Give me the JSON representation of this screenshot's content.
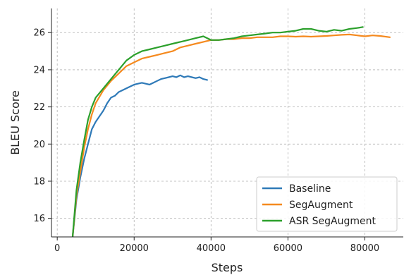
{
  "chart_data": {
    "type": "line",
    "title": "",
    "xlabel": "Steps",
    "ylabel": "BLEU Score",
    "xlim": [
      -1500,
      90000
    ],
    "ylim": [
      15.0,
      27.3
    ],
    "xticks": [
      0,
      20000,
      40000,
      60000,
      80000
    ],
    "yticks": [
      16,
      18,
      20,
      22,
      24,
      26
    ],
    "xtick_labels": [
      "0",
      "20000",
      "40000",
      "60000",
      "80000"
    ],
    "ytick_labels": [
      "16",
      "18",
      "20",
      "22",
      "24",
      "26"
    ],
    "grid": true,
    "legend_position": "lower-right",
    "series": [
      {
        "name": "Baseline",
        "color": "#2f7ab8",
        "x": [
          4000,
          5000,
          6000,
          7000,
          8000,
          9000,
          10000,
          11000,
          12000,
          13000,
          14000,
          15000,
          16000,
          17000,
          18000,
          19000,
          20000,
          21000,
          22000,
          23000,
          24000,
          25000,
          26000,
          27000,
          28000,
          29000,
          30000,
          31000,
          32000,
          33000,
          34000,
          35000,
          36000,
          37000,
          38000,
          39000
        ],
        "y": [
          15.0,
          17.0,
          18.2,
          19.2,
          20.0,
          20.8,
          21.2,
          21.5,
          21.8,
          22.2,
          22.5,
          22.6,
          22.8,
          22.9,
          23.0,
          23.1,
          23.2,
          23.25,
          23.3,
          23.25,
          23.2,
          23.3,
          23.4,
          23.5,
          23.55,
          23.6,
          23.65,
          23.6,
          23.7,
          23.6,
          23.65,
          23.6,
          23.55,
          23.6,
          23.5,
          23.45
        ]
      },
      {
        "name": "SegAugment",
        "color": "#f58a1f",
        "x": [
          4000,
          5000,
          6000,
          7000,
          8000,
          9000,
          10000,
          12000,
          14000,
          16000,
          18000,
          20000,
          22000,
          24000,
          26000,
          28000,
          30000,
          32000,
          34000,
          36000,
          38000,
          40000,
          42000,
          44000,
          46000,
          48000,
          50000,
          52000,
          54000,
          56000,
          58000,
          60000,
          62000,
          64000,
          66000,
          68000,
          70000,
          72000,
          74000,
          76000,
          78000,
          80000,
          82000,
          84000,
          86500
        ],
        "y": [
          15.0,
          17.2,
          18.5,
          19.8,
          20.8,
          21.6,
          22.2,
          22.9,
          23.4,
          23.8,
          24.2,
          24.4,
          24.6,
          24.7,
          24.8,
          24.9,
          25.0,
          25.2,
          25.3,
          25.4,
          25.5,
          25.6,
          25.6,
          25.65,
          25.65,
          25.7,
          25.7,
          25.75,
          25.75,
          25.75,
          25.8,
          25.8,
          25.78,
          25.8,
          25.78,
          25.8,
          25.82,
          25.85,
          25.88,
          25.9,
          25.85,
          25.8,
          25.85,
          25.82,
          25.75
        ]
      },
      {
        "name": "ASR SegAugment",
        "color": "#2ca02c",
        "x": [
          4000,
          5000,
          6000,
          7000,
          8000,
          9000,
          10000,
          12000,
          14000,
          16000,
          18000,
          20000,
          22000,
          24000,
          26000,
          28000,
          30000,
          32000,
          34000,
          36000,
          38000,
          40000,
          42000,
          44000,
          46000,
          48000,
          50000,
          52000,
          54000,
          56000,
          58000,
          60000,
          62000,
          64000,
          66000,
          68000,
          70000,
          72000,
          74000,
          76000,
          78000,
          79500
        ],
        "y": [
          15.0,
          17.5,
          19.0,
          20.2,
          21.3,
          22.0,
          22.5,
          23.0,
          23.5,
          24.0,
          24.5,
          24.8,
          25.0,
          25.1,
          25.2,
          25.3,
          25.4,
          25.5,
          25.6,
          25.7,
          25.8,
          25.6,
          25.6,
          25.65,
          25.7,
          25.8,
          25.85,
          25.9,
          25.95,
          26.0,
          26.0,
          26.05,
          26.1,
          26.2,
          26.2,
          26.1,
          26.05,
          26.15,
          26.1,
          26.2,
          26.25,
          26.3
        ]
      }
    ]
  }
}
